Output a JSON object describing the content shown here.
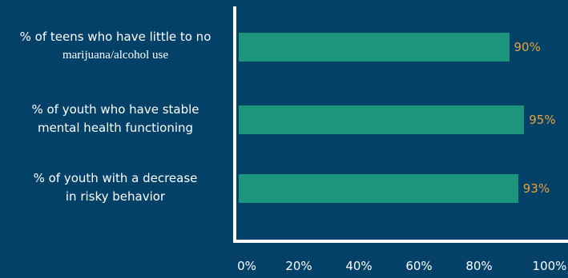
{
  "colors": {
    "background": "#044168",
    "bar": "#1b967c",
    "value_label": "#e8a33d",
    "axis": "#ffffff",
    "text": "#ffffff"
  },
  "chart_data": {
    "type": "bar",
    "orientation": "horizontal",
    "title": "",
    "xlabel": "",
    "ylabel": "",
    "xlim": [
      0,
      100
    ],
    "grid": false,
    "categories": [
      {
        "line1": "% of teens who have little to no",
        "line2": "marijuana/alcohol use"
      },
      {
        "line1": "% of youth who have stable",
        "line2": "mental health functioning"
      },
      {
        "line1": "% of youth with a decrease",
        "line2": "in risky behavior"
      }
    ],
    "values": [
      90,
      95,
      93
    ],
    "value_labels": [
      "90%",
      "95%",
      "93%"
    ],
    "ticks": [
      {
        "value": 0,
        "label": "0%"
      },
      {
        "value": 20,
        "label": "20%"
      },
      {
        "value": 40,
        "label": "40%"
      },
      {
        "value": 60,
        "label": "60%"
      },
      {
        "value": 80,
        "label": "80%"
      },
      {
        "value": 100,
        "label": "100%"
      }
    ]
  }
}
